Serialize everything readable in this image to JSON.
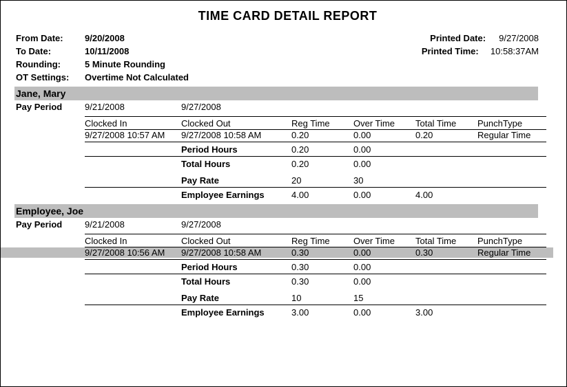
{
  "title": "TIME CARD DETAIL REPORT",
  "meta": {
    "fromDateLabel": "From Date:",
    "fromDate": "9/20/2008",
    "toDateLabel": "To Date:",
    "toDate": "10/11/2008",
    "roundingLabel": "Rounding:",
    "rounding": "5 Minute Rounding",
    "otLabel": "OT Settings:",
    "ot": "Overtime Not Calculated",
    "printedDateLabel": "Printed Date:",
    "printedDate": "9/27/2008",
    "printedTimeLabel": "Printed Time:",
    "printedTime": "10:58:37AM"
  },
  "headers": {
    "payPeriod": "Pay Period",
    "clockedIn": "Clocked In",
    "clockedOut": "Clocked Out",
    "regTime": "Reg Time",
    "overTime": "Over Time",
    "totalTime": "Total Time",
    "punchType": "PunchType",
    "periodHours": "Period Hours",
    "totalHours": "Total Hours",
    "payRate": "Pay Rate",
    "empEarnings": "Employee Earnings"
  },
  "employees": [
    {
      "name": "Jane, Mary",
      "periodStart": "9/21/2008",
      "periodEnd": "9/27/2008",
      "punch": {
        "in": "9/27/2008 10:57 AM",
        "out": "9/27/2008 10:58 AM",
        "reg": "0.20",
        "over": "0.00",
        "total": "0.20",
        "type": "Regular Time",
        "highlighted": false
      },
      "periodHours": {
        "reg": "0.20",
        "over": "0.00"
      },
      "totalHours": {
        "reg": "0.20",
        "over": "0.00"
      },
      "payRate": {
        "reg": "20",
        "over": "30"
      },
      "earnings": {
        "reg": "4.00",
        "over": "0.00",
        "total": "4.00"
      }
    },
    {
      "name": "Employee, Joe",
      "periodStart": "9/21/2008",
      "periodEnd": "9/27/2008",
      "punch": {
        "in": "9/27/2008 10:56 AM",
        "out": "9/27/2008 10:58 AM",
        "reg": "0.30",
        "over": "0.00",
        "total": "0.30",
        "type": "Regular Time",
        "highlighted": true
      },
      "periodHours": {
        "reg": "0.30",
        "over": "0.00"
      },
      "totalHours": {
        "reg": "0.30",
        "over": "0.00"
      },
      "payRate": {
        "reg": "10",
        "over": "15"
      },
      "earnings": {
        "reg": "3.00",
        "over": "0.00",
        "total": "3.00"
      }
    }
  ]
}
